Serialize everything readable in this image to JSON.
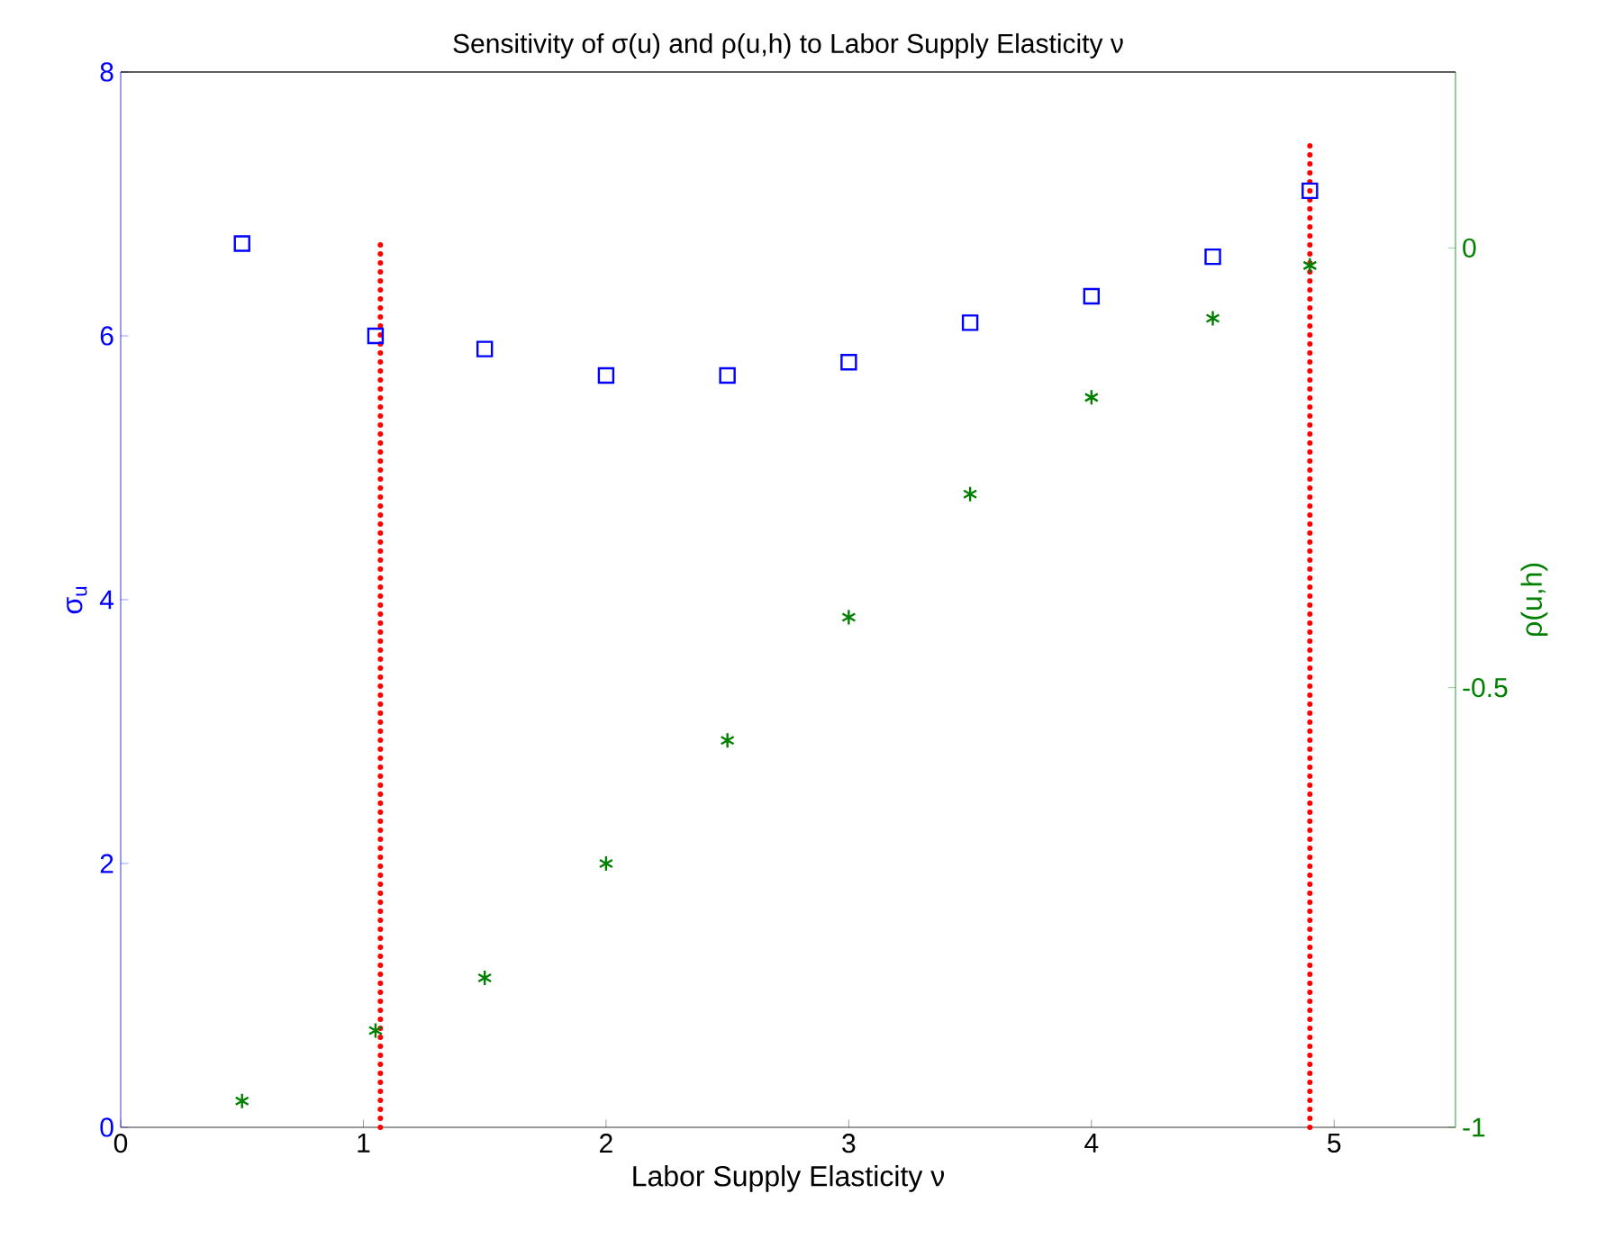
{
  "chart_data": {
    "type": "scatter",
    "title": "Sensitivity of σ(u) and ρ(u,h) to Labor Supply Elasticity ν",
    "xlabel": "Labor Supply Elasticity ν",
    "ylabel": "σ$_{u}$",
    "y2label": "ρ(u,h)",
    "xlim": [
      0,
      5.5
    ],
    "xticks": [
      0,
      1,
      2,
      3,
      4,
      5
    ],
    "ylim": [
      0,
      8
    ],
    "yticks": [
      0,
      2,
      4,
      6,
      8
    ],
    "y2lim": [
      -1,
      0.2
    ],
    "y2ticks": [
      -1,
      -0.5,
      0
    ],
    "series": [
      {
        "marker": "square",
        "color": "#0000ff",
        "x": [
          0.5,
          1.05,
          1.5,
          2,
          2.5,
          3,
          3.5,
          4,
          4.5,
          4.9
        ],
        "values": [
          6.7,
          6.0,
          5.9,
          5.7,
          5.7,
          5.8,
          6.1,
          6.3,
          6.6,
          7.1
        ]
      },
      {
        "marker": "cross",
        "color": "#008000",
        "axis": "y2",
        "x": [
          0.5,
          1.05,
          1.5,
          2,
          2.5,
          3,
          3.5,
          4,
          4.5,
          4.9
        ],
        "values": [
          -0.97,
          -0.89,
          -0.83,
          -0.7,
          -0.56,
          -0.42,
          -0.28,
          -0.17,
          -0.08,
          -0.02
        ]
      },
      {
        "type": "line",
        "line_style": "dotted",
        "color": "#ff0000",
        "x": [
          1.07,
          1.07
        ],
        "values": [
          0,
          6.75
        ]
      },
      {
        "type": "line",
        "line_style": "dotted",
        "color": "#ff0000",
        "x": [
          4.9,
          4.9
        ],
        "values": [
          0,
          7.45
        ]
      }
    ]
  }
}
